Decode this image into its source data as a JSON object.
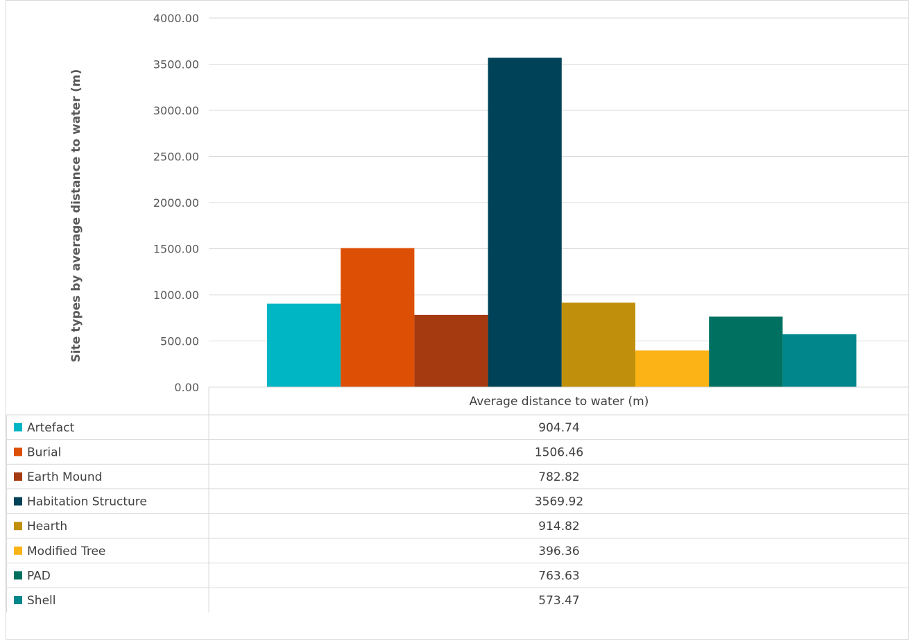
{
  "chart_data": {
    "type": "bar",
    "title": "",
    "xlabel": "",
    "ylabel": "Site types by average distance to water (m)",
    "categories": [
      "Average distance to water (m)"
    ],
    "ylim": [
      0,
      4000
    ],
    "yticks": [
      "0.00",
      "500.00",
      "1000.00",
      "1500.00",
      "2000.00",
      "2500.00",
      "3000.00",
      "3500.00",
      "4000.00"
    ],
    "grid": true,
    "legend": "data-table",
    "series": [
      {
        "name": "Artefact",
        "values": [
          904.74
        ],
        "label": "904.74",
        "color": "#00b5c4"
      },
      {
        "name": "Burial",
        "values": [
          1506.46
        ],
        "label": "1506.46",
        "color": "#dd4f05"
      },
      {
        "name": "Earth Mound",
        "values": [
          782.82
        ],
        "label": "782.82",
        "color": "#a53a10"
      },
      {
        "name": "Habitation Structure",
        "values": [
          3569.92
        ],
        "label": "3569.92",
        "color": "#004258"
      },
      {
        "name": "Hearth",
        "values": [
          914.82
        ],
        "label": "914.82",
        "color": "#c0900c"
      },
      {
        "name": "Modified Tree",
        "values": [
          396.36
        ],
        "label": "396.36",
        "color": "#fbb316"
      },
      {
        "name": "PAD",
        "values": [
          763.63
        ],
        "label": "763.63",
        "color": "#007161"
      },
      {
        "name": "Shell",
        "values": [
          573.47
        ],
        "label": "573.47",
        "color": "#00868b"
      }
    ]
  }
}
